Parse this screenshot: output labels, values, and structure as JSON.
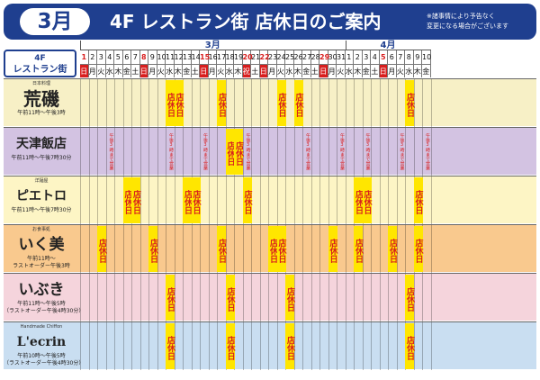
{
  "header": {
    "month_badge": "3月",
    "title": "4F  レストラン街  店休日のご案内",
    "note_line1": "※諸事情により予告なく",
    "note_line2": "変更になる場合がございます"
  },
  "corner": {
    "line1": "4F",
    "line2": "レストラン街"
  },
  "calendar": {
    "months": [
      {
        "label": "3月",
        "start": 0,
        "count": 31
      },
      {
        "label": "4月",
        "start": 31,
        "count": 10
      }
    ],
    "days": [
      {
        "d": "1",
        "w": "日",
        "hl": true
      },
      {
        "d": "2",
        "w": "月"
      },
      {
        "d": "3",
        "w": "火"
      },
      {
        "d": "4",
        "w": "水"
      },
      {
        "d": "5",
        "w": "木"
      },
      {
        "d": "6",
        "w": "金"
      },
      {
        "d": "7",
        "w": "土"
      },
      {
        "d": "8",
        "w": "日",
        "hl": true
      },
      {
        "d": "9",
        "w": "月"
      },
      {
        "d": "10",
        "w": "火"
      },
      {
        "d": "11",
        "w": "水"
      },
      {
        "d": "12",
        "w": "木"
      },
      {
        "d": "13",
        "w": "金"
      },
      {
        "d": "14",
        "w": "土"
      },
      {
        "d": "15",
        "w": "日",
        "hl": true
      },
      {
        "d": "16",
        "w": "月"
      },
      {
        "d": "17",
        "w": "火"
      },
      {
        "d": "18",
        "w": "水"
      },
      {
        "d": "19",
        "w": "木"
      },
      {
        "d": "20",
        "w": "祝",
        "hl": true
      },
      {
        "d": "21",
        "w": "土"
      },
      {
        "d": "22",
        "w": "日",
        "hl": true
      },
      {
        "d": "23",
        "w": "月"
      },
      {
        "d": "24",
        "w": "火"
      },
      {
        "d": "25",
        "w": "水"
      },
      {
        "d": "26",
        "w": "木"
      },
      {
        "d": "27",
        "w": "金"
      },
      {
        "d": "28",
        "w": "土"
      },
      {
        "d": "29",
        "w": "日",
        "hl": true
      },
      {
        "d": "30",
        "w": "月"
      },
      {
        "d": "31",
        "w": "火"
      },
      {
        "d": "1",
        "w": "水"
      },
      {
        "d": "2",
        "w": "木"
      },
      {
        "d": "3",
        "w": "金"
      },
      {
        "d": "4",
        "w": "土"
      },
      {
        "d": "5",
        "w": "日",
        "hl": true
      },
      {
        "d": "6",
        "w": "月"
      },
      {
        "d": "7",
        "w": "火"
      },
      {
        "d": "8",
        "w": "水"
      },
      {
        "d": "9",
        "w": "木"
      },
      {
        "d": "10",
        "w": "金"
      }
    ],
    "closed_text": "店休日",
    "half_text": "午後3時まで営業",
    "restaurants": [
      {
        "logo": "荒磯",
        "kicker": "日本料理",
        "hours1": "午前11時～午後3時",
        "hours2": "",
        "bg": "#f7f0c6",
        "logo_size": 20,
        "closed": [
          10,
          11,
          16,
          23,
          25,
          38
        ],
        "half": []
      },
      {
        "logo": "天津飯店",
        "kicker": "",
        "hours1": "午前11時～午後7時30分",
        "hours2": "",
        "bg": "#d3c3e2",
        "logo_size": 14,
        "closed": [
          17,
          18
        ],
        "half": [
          3,
          10,
          14,
          19,
          26,
          30,
          33,
          37,
          40
        ]
      },
      {
        "logo": "ピエトロ",
        "kicker": "洋麺屋",
        "hours1": "午前11時～午後7時30分",
        "hours2": "",
        "bg": "#fdf5c5",
        "logo_size": 14,
        "closed": [
          5,
          6,
          12,
          13,
          19,
          32,
          33,
          39
        ],
        "half": []
      },
      {
        "logo": "いく美",
        "kicker": "お食事処",
        "hours1": "午前11時～",
        "hours2": "ラストオーダー午後3時",
        "bg": "#f9c98e",
        "logo_size": 17,
        "closed": [
          2,
          8,
          16,
          22,
          23,
          29,
          32,
          36,
          39
        ],
        "half": []
      },
      {
        "logo": "いぶき",
        "kicker": "",
        "hours1": "午前11時～午後5時",
        "hours2": "（ラストオーダー午後4時30分）",
        "bg": "#f5d4dc",
        "logo_size": 17,
        "closed": [
          10,
          17,
          24,
          38
        ],
        "half": []
      },
      {
        "logo": "L'ecrin",
        "kicker": "Handmade Chiffon",
        "hours1": "午前10時～午後5時",
        "hours2": "（ラストオーダー午後4時30分）",
        "bg": "#c9def1",
        "logo_size": 14,
        "closed": [
          10,
          17,
          24,
          38
        ],
        "half": []
      }
    ]
  },
  "colors": {
    "navy": "#1f3f8f",
    "red": "#d81e1e",
    "closed_bg": "#ffe600"
  }
}
